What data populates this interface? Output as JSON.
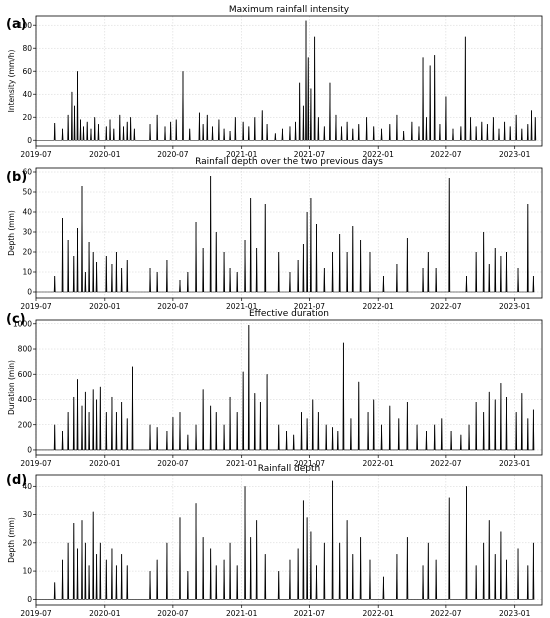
{
  "chart_data": [
    {
      "type": "line",
      "panel_label": "(a)",
      "title": "Maximum rainfall intensity",
      "ylabel": "Intensity (mm/h)",
      "xlim": [
        "2019-07-01",
        "2023-03-15"
      ],
      "ylim": [
        -5,
        108
      ],
      "yticks": [
        0,
        20,
        40,
        60,
        80,
        100
      ],
      "xticks": [
        "2019-07",
        "2020-01",
        "2020-07",
        "2021-01",
        "2021-07",
        "2022-01",
        "2022-07",
        "2023-01"
      ],
      "grid": true,
      "series": [
        {
          "x": [
            "2019-08-20",
            "2019-09-10",
            "2019-09-25",
            "2019-10-05",
            "2019-10-12",
            "2019-10-20",
            "2019-10-28",
            "2019-11-05",
            "2019-11-15",
            "2019-11-25",
            "2019-12-05",
            "2019-12-15",
            "2020-01-05",
            "2020-01-15",
            "2020-01-25",
            "2020-02-10",
            "2020-02-20",
            "2020-03-01",
            "2020-03-10",
            "2020-03-20",
            "2020-05-01",
            "2020-05-20",
            "2020-06-10",
            "2020-06-25",
            "2020-07-10",
            "2020-07-28",
            "2020-08-15",
            "2020-09-10",
            "2020-09-20",
            "2020-10-01",
            "2020-10-15",
            "2020-11-01",
            "2020-11-15",
            "2020-12-01",
            "2020-12-15",
            "2021-01-05",
            "2021-01-20",
            "2021-02-05",
            "2021-02-25",
            "2021-03-10",
            "2021-04-01",
            "2021-04-20",
            "2021-05-10",
            "2021-05-25",
            "2021-06-05",
            "2021-06-15",
            "2021-06-22",
            "2021-06-28",
            "2021-07-05",
            "2021-07-15",
            "2021-07-25",
            "2021-08-10",
            "2021-08-25",
            "2021-09-10",
            "2021-09-25",
            "2021-10-10",
            "2021-10-25",
            "2021-11-10",
            "2021-12-01",
            "2021-12-20",
            "2022-01-10",
            "2022-02-01",
            "2022-02-20",
            "2022-03-10",
            "2022-04-01",
            "2022-04-20",
            "2022-05-01",
            "2022-05-10",
            "2022-05-20",
            "2022-06-01",
            "2022-06-15",
            "2022-07-01",
            "2022-07-20",
            "2022-08-10",
            "2022-08-22",
            "2022-09-05",
            "2022-09-20",
            "2022-10-05",
            "2022-10-20",
            "2022-11-05",
            "2022-11-20",
            "2022-12-05",
            "2022-12-20",
            "2023-01-05",
            "2023-01-20",
            "2023-02-05",
            "2023-02-15",
            "2023-02-25"
          ],
          "y": [
            15,
            10,
            22,
            42,
            30,
            60,
            18,
            12,
            16,
            10,
            20,
            14,
            12,
            18,
            10,
            22,
            12,
            16,
            20,
            10,
            14,
            22,
            12,
            16,
            18,
            60,
            10,
            24,
            14,
            22,
            12,
            18,
            10,
            8,
            20,
            16,
            12,
            20,
            26,
            14,
            6,
            10,
            12,
            16,
            50,
            30,
            104,
            72,
            45,
            90,
            20,
            12,
            50,
            22,
            12,
            16,
            10,
            14,
            20,
            12,
            10,
            14,
            22,
            8,
            16,
            12,
            72,
            20,
            65,
            74,
            14,
            38,
            10,
            12,
            90,
            20,
            12,
            16,
            14,
            20,
            10,
            16,
            12,
            22,
            10,
            14,
            26,
            20
          ]
        }
      ]
    },
    {
      "type": "line",
      "panel_label": "(b)",
      "title": "Rainfall depth over the two previous days",
      "ylabel": "Depth (mm)",
      "xlim": [
        "2019-07-01",
        "2023-03-15"
      ],
      "ylim": [
        -3,
        62
      ],
      "yticks": [
        0,
        10,
        20,
        30,
        40,
        50,
        60
      ],
      "xticks": [
        "2019-07",
        "2020-01",
        "2020-07",
        "2021-01",
        "2021-07",
        "2022-01",
        "2022-07",
        "2023-01"
      ],
      "grid": true,
      "series": [
        {
          "x": [
            "2019-08-20",
            "2019-09-10",
            "2019-09-25",
            "2019-10-10",
            "2019-10-20",
            "2019-11-01",
            "2019-11-10",
            "2019-11-20",
            "2019-12-01",
            "2019-12-10",
            "2020-01-05",
            "2020-01-20",
            "2020-02-01",
            "2020-02-15",
            "2020-03-01",
            "2020-05-01",
            "2020-05-20",
            "2020-06-15",
            "2020-07-20",
            "2020-08-10",
            "2020-09-01",
            "2020-09-20",
            "2020-10-10",
            "2020-10-25",
            "2020-11-15",
            "2020-12-01",
            "2020-12-20",
            "2021-01-10",
            "2021-01-25",
            "2021-02-10",
            "2021-03-05",
            "2021-04-10",
            "2021-05-10",
            "2021-06-01",
            "2021-06-15",
            "2021-06-25",
            "2021-07-05",
            "2021-07-20",
            "2021-08-10",
            "2021-09-01",
            "2021-09-20",
            "2021-10-10",
            "2021-10-25",
            "2021-11-15",
            "2021-12-10",
            "2022-01-15",
            "2022-02-20",
            "2022-03-20",
            "2022-05-01",
            "2022-05-15",
            "2022-06-05",
            "2022-07-10",
            "2022-08-25",
            "2022-09-20",
            "2022-10-10",
            "2022-10-25",
            "2022-11-10",
            "2022-11-25",
            "2022-12-10",
            "2023-01-10",
            "2023-02-05",
            "2023-02-20"
          ],
          "y": [
            8,
            37,
            26,
            18,
            32,
            53,
            10,
            25,
            20,
            15,
            18,
            14,
            20,
            12,
            16,
            12,
            10,
            16,
            6,
            10,
            35,
            22,
            58,
            30,
            20,
            12,
            10,
            26,
            47,
            22,
            44,
            20,
            10,
            16,
            24,
            40,
            47,
            34,
            12,
            20,
            29,
            20,
            33,
            26,
            20,
            8,
            14,
            27,
            12,
            20,
            12,
            57,
            8,
            20,
            30,
            14,
            22,
            18,
            20,
            12,
            44,
            8
          ]
        }
      ]
    },
    {
      "type": "line",
      "panel_label": "(c)",
      "title": "Effective duration",
      "ylabel": "Duration (min)",
      "xlim": [
        "2019-07-01",
        "2023-03-15"
      ],
      "ylim": [
        -40,
        1030
      ],
      "yticks": [
        0,
        200,
        400,
        600,
        800,
        1000
      ],
      "xticks": [
        "2019-07",
        "2020-01",
        "2020-07",
        "2021-01",
        "2021-07",
        "2022-01",
        "2022-07",
        "2023-01"
      ],
      "grid": true,
      "series": [
        {
          "x": [
            "2019-08-20",
            "2019-09-10",
            "2019-09-25",
            "2019-10-10",
            "2019-10-20",
            "2019-11-01",
            "2019-11-10",
            "2019-11-20",
            "2019-12-01",
            "2019-12-10",
            "2019-12-20",
            "2020-01-05",
            "2020-01-20",
            "2020-02-01",
            "2020-02-15",
            "2020-03-01",
            "2020-03-15",
            "2020-05-01",
            "2020-05-20",
            "2020-06-15",
            "2020-07-01",
            "2020-07-20",
            "2020-08-10",
            "2020-09-01",
            "2020-09-20",
            "2020-10-10",
            "2020-10-25",
            "2020-11-15",
            "2020-12-01",
            "2020-12-20",
            "2021-01-05",
            "2021-01-20",
            "2021-02-05",
            "2021-02-20",
            "2021-03-10",
            "2021-04-10",
            "2021-05-01",
            "2021-05-20",
            "2021-06-10",
            "2021-06-25",
            "2021-07-10",
            "2021-07-25",
            "2021-08-15",
            "2021-09-01",
            "2021-09-15",
            "2021-09-30",
            "2021-10-20",
            "2021-11-10",
            "2021-12-05",
            "2021-12-20",
            "2022-01-10",
            "2022-02-01",
            "2022-02-25",
            "2022-03-20",
            "2022-04-15",
            "2022-05-10",
            "2022-06-01",
            "2022-06-20",
            "2022-07-15",
            "2022-08-10",
            "2022-09-01",
            "2022-09-20",
            "2022-10-10",
            "2022-10-25",
            "2022-11-10",
            "2022-11-25",
            "2022-12-10",
            "2023-01-05",
            "2023-01-20",
            "2023-02-05",
            "2023-02-20"
          ],
          "y": [
            200,
            150,
            300,
            420,
            560,
            350,
            460,
            300,
            480,
            400,
            500,
            300,
            420,
            300,
            380,
            250,
            660,
            200,
            180,
            150,
            260,
            300,
            120,
            200,
            480,
            350,
            300,
            200,
            420,
            300,
            620,
            990,
            450,
            380,
            600,
            200,
            150,
            120,
            300,
            250,
            400,
            300,
            200,
            180,
            150,
            850,
            250,
            540,
            300,
            400,
            200,
            350,
            250,
            380,
            200,
            150,
            200,
            250,
            150,
            120,
            200,
            380,
            300,
            460,
            400,
            530,
            420,
            300,
            450,
            250,
            320
          ]
        }
      ]
    },
    {
      "type": "line",
      "panel_label": "(d)",
      "title": "Rainfall depth",
      "ylabel": "Depth (mm)",
      "xlim": [
        "2019-07-01",
        "2023-03-15"
      ],
      "ylim": [
        -2,
        44
      ],
      "yticks": [
        0,
        10,
        20,
        30,
        40
      ],
      "xticks": [
        "2019-07",
        "2020-01",
        "2020-07",
        "2021-01",
        "2021-07",
        "2022-01",
        "2022-07",
        "2023-01"
      ],
      "grid": true,
      "series": [
        {
          "x": [
            "2019-08-20",
            "2019-09-10",
            "2019-09-25",
            "2019-10-10",
            "2019-10-20",
            "2019-11-01",
            "2019-11-10",
            "2019-11-20",
            "2019-12-01",
            "2019-12-10",
            "2019-12-20",
            "2020-01-05",
            "2020-01-20",
            "2020-02-01",
            "2020-02-15",
            "2020-03-01",
            "2020-05-01",
            "2020-05-20",
            "2020-06-15",
            "2020-07-20",
            "2020-08-10",
            "2020-09-01",
            "2020-09-20",
            "2020-10-10",
            "2020-10-25",
            "2020-11-15",
            "2020-12-01",
            "2020-12-20",
            "2021-01-10",
            "2021-01-25",
            "2021-02-10",
            "2021-03-05",
            "2021-04-10",
            "2021-05-10",
            "2021-06-01",
            "2021-06-15",
            "2021-06-25",
            "2021-07-05",
            "2021-07-20",
            "2021-08-10",
            "2021-09-01",
            "2021-09-20",
            "2021-10-10",
            "2021-10-25",
            "2021-11-15",
            "2021-12-10",
            "2022-01-15",
            "2022-02-20",
            "2022-03-20",
            "2022-05-01",
            "2022-05-15",
            "2022-06-05",
            "2022-07-10",
            "2022-08-25",
            "2022-09-20",
            "2022-10-10",
            "2022-10-25",
            "2022-11-10",
            "2022-11-25",
            "2022-12-10",
            "2023-01-10",
            "2023-02-05",
            "2023-02-20"
          ],
          "y": [
            6,
            14,
            20,
            27,
            18,
            28,
            20,
            12,
            31,
            16,
            20,
            14,
            18,
            12,
            16,
            12,
            10,
            14,
            20,
            29,
            10,
            34,
            22,
            18,
            12,
            14,
            20,
            12,
            40,
            22,
            28,
            16,
            10,
            14,
            18,
            35,
            29,
            24,
            12,
            20,
            42,
            20,
            28,
            16,
            22,
            14,
            8,
            16,
            22,
            12,
            20,
            14,
            36,
            40,
            12,
            20,
            28,
            16,
            24,
            14,
            18,
            12,
            20
          ]
        }
      ]
    }
  ]
}
